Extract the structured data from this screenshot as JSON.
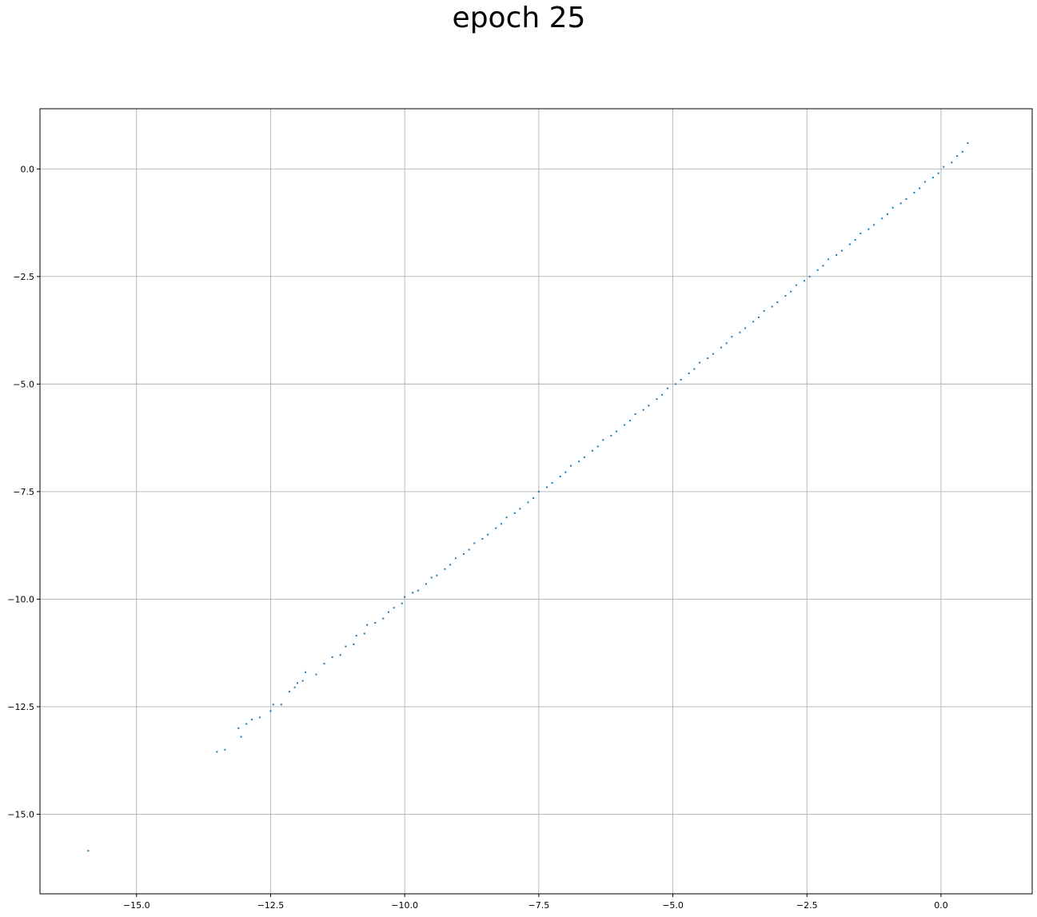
{
  "chart_data": {
    "type": "scatter",
    "title": "epoch 25",
    "xlabel": "",
    "ylabel": "",
    "xlim": [
      -16.8,
      1.7
    ],
    "ylim": [
      -16.85,
      1.4
    ],
    "x_ticks": [
      -15.0,
      -12.5,
      -10.0,
      -7.5,
      -5.0,
      -2.5,
      0.0
    ],
    "x_tick_labels": [
      "−15.0",
      "−12.5",
      "−10.0",
      "−7.5",
      "−5.0",
      "−2.5",
      "0.0"
    ],
    "y_ticks": [
      0.0,
      -2.5,
      -5.0,
      -7.5,
      -10.0,
      -12.5,
      -15.0
    ],
    "y_tick_labels": [
      "0.0",
      "−2.5",
      "−5.0",
      "−7.5",
      "−10.0",
      "−12.5",
      "−15.0"
    ],
    "grid": true,
    "marker_color": "#1f77b4",
    "series": [
      {
        "points": [
          [
            -15.9,
            -15.85
          ],
          [
            -13.5,
            -13.55
          ],
          [
            -13.35,
            -13.5
          ],
          [
            -13.05,
            -13.2
          ],
          [
            -13.1,
            -13.0
          ],
          [
            -12.95,
            -12.9
          ],
          [
            -12.85,
            -12.8
          ],
          [
            -12.7,
            -12.75
          ],
          [
            -12.5,
            -12.6
          ],
          [
            -12.45,
            -12.45
          ],
          [
            -12.3,
            -12.45
          ],
          [
            -12.15,
            -12.15
          ],
          [
            -12.05,
            -12.05
          ],
          [
            -12.0,
            -11.95
          ],
          [
            -11.9,
            -11.9
          ],
          [
            -11.85,
            -11.7
          ],
          [
            -11.65,
            -11.75
          ],
          [
            -11.5,
            -11.5
          ],
          [
            -11.35,
            -11.35
          ],
          [
            -11.2,
            -11.3
          ],
          [
            -11.1,
            -11.1
          ],
          [
            -10.95,
            -11.05
          ],
          [
            -10.9,
            -10.85
          ],
          [
            -10.75,
            -10.8
          ],
          [
            -10.7,
            -10.6
          ],
          [
            -10.55,
            -10.55
          ],
          [
            -10.4,
            -10.45
          ],
          [
            -10.3,
            -10.3
          ],
          [
            -10.2,
            -10.2
          ],
          [
            -10.05,
            -10.1
          ],
          [
            -10.0,
            -9.95
          ],
          [
            -9.85,
            -9.85
          ],
          [
            -9.75,
            -9.8
          ],
          [
            -9.6,
            -9.65
          ],
          [
            -9.5,
            -9.5
          ],
          [
            -9.4,
            -9.45
          ],
          [
            -9.25,
            -9.3
          ],
          [
            -9.15,
            -9.2
          ],
          [
            -9.05,
            -9.05
          ],
          [
            -8.9,
            -8.95
          ],
          [
            -8.8,
            -8.85
          ],
          [
            -8.7,
            -8.7
          ],
          [
            -8.55,
            -8.6
          ],
          [
            -8.45,
            -8.5
          ],
          [
            -8.3,
            -8.35
          ],
          [
            -8.2,
            -8.25
          ],
          [
            -8.1,
            -8.1
          ],
          [
            -7.95,
            -8.0
          ],
          [
            -7.85,
            -7.9
          ],
          [
            -7.7,
            -7.75
          ],
          [
            -7.6,
            -7.65
          ],
          [
            -7.5,
            -7.5
          ],
          [
            -7.35,
            -7.4
          ],
          [
            -7.25,
            -7.3
          ],
          [
            -7.1,
            -7.15
          ],
          [
            -7.0,
            -7.05
          ],
          [
            -6.9,
            -6.9
          ],
          [
            -6.75,
            -6.8
          ],
          [
            -6.65,
            -6.7
          ],
          [
            -6.5,
            -6.55
          ],
          [
            -6.4,
            -6.45
          ],
          [
            -6.3,
            -6.3
          ],
          [
            -6.15,
            -6.2
          ],
          [
            -6.05,
            -6.1
          ],
          [
            -5.9,
            -5.95
          ],
          [
            -5.8,
            -5.85
          ],
          [
            -5.7,
            -5.7
          ],
          [
            -5.55,
            -5.6
          ],
          [
            -5.45,
            -5.5
          ],
          [
            -5.3,
            -5.35
          ],
          [
            -5.2,
            -5.25
          ],
          [
            -5.1,
            -5.1
          ],
          [
            -4.95,
            -5.0
          ],
          [
            -4.85,
            -4.9
          ],
          [
            -4.7,
            -4.75
          ],
          [
            -4.6,
            -4.65
          ],
          [
            -4.5,
            -4.5
          ],
          [
            -4.35,
            -4.4
          ],
          [
            -4.25,
            -4.3
          ],
          [
            -4.1,
            -4.15
          ],
          [
            -4.0,
            -4.05
          ],
          [
            -3.9,
            -3.9
          ],
          [
            -3.75,
            -3.8
          ],
          [
            -3.65,
            -3.7
          ],
          [
            -3.5,
            -3.55
          ],
          [
            -3.4,
            -3.45
          ],
          [
            -3.3,
            -3.3
          ],
          [
            -3.15,
            -3.2
          ],
          [
            -3.05,
            -3.1
          ],
          [
            -2.9,
            -2.95
          ],
          [
            -2.8,
            -2.85
          ],
          [
            -2.7,
            -2.7
          ],
          [
            -2.55,
            -2.6
          ],
          [
            -2.45,
            -2.5
          ],
          [
            -2.3,
            -2.35
          ],
          [
            -2.2,
            -2.25
          ],
          [
            -2.1,
            -2.1
          ],
          [
            -1.95,
            -2.0
          ],
          [
            -1.85,
            -1.9
          ],
          [
            -1.7,
            -1.75
          ],
          [
            -1.6,
            -1.65
          ],
          [
            -1.5,
            -1.5
          ],
          [
            -1.35,
            -1.4
          ],
          [
            -1.25,
            -1.3
          ],
          [
            -1.1,
            -1.15
          ],
          [
            -1.0,
            -1.05
          ],
          [
            -0.9,
            -0.9
          ],
          [
            -0.75,
            -0.8
          ],
          [
            -0.65,
            -0.7
          ],
          [
            -0.5,
            -0.55
          ],
          [
            -0.4,
            -0.45
          ],
          [
            -0.3,
            -0.3
          ],
          [
            -0.15,
            -0.2
          ],
          [
            -0.05,
            -0.1
          ],
          [
            0.05,
            0.05
          ],
          [
            0.2,
            0.15
          ],
          [
            0.3,
            0.3
          ],
          [
            0.4,
            0.4
          ],
          [
            0.5,
            0.6
          ]
        ]
      }
    ]
  }
}
